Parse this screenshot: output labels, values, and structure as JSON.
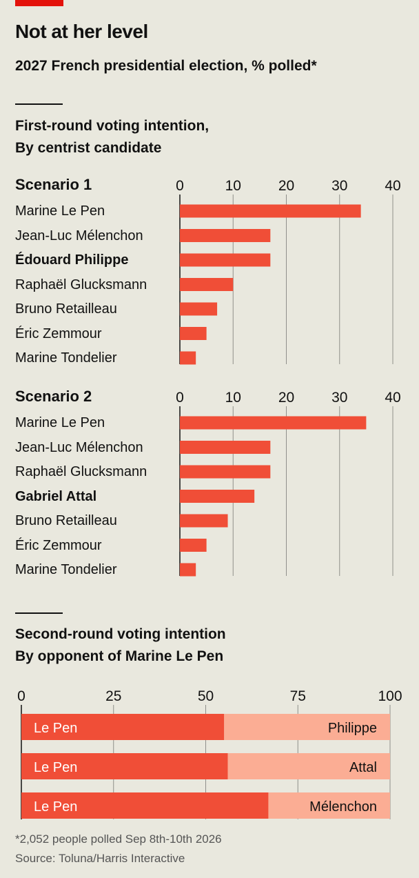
{
  "header": {
    "title": "Not at her level",
    "subtitle": "2027 French presidential election, % polled*"
  },
  "first_round": {
    "title_line1": "First-round voting intention,",
    "title_line2": "By centrist candidate"
  },
  "second_round": {
    "title_line1": "Second-round voting intention",
    "title_line2": "By opponent of Marine Le Pen"
  },
  "footer": {
    "note": "*2,052 people polled Sep 8th-10th 2026",
    "source": "Source: Toluna/Harris Interactive"
  },
  "colors": {
    "bar": "#f04e37",
    "bar_light": "#fbad94",
    "accent": "#e3120b",
    "grid": "#8f8f8a",
    "background": "#e9e8de"
  },
  "chart_data": [
    {
      "type": "bar",
      "orientation": "horizontal",
      "title": "Scenario 1",
      "xlim": [
        0,
        40
      ],
      "xticks": [
        0,
        10,
        20,
        30,
        40
      ],
      "categories": [
        "Marine Le Pen",
        "Jean-Luc Mélenchon",
        "Édouard Philippe",
        "Raphaël Glucksmann",
        "Bruno Retailleau",
        "Éric Zemmour",
        "Marine Tondelier"
      ],
      "highlight": "Édouard Philippe",
      "values": [
        34,
        17,
        17,
        10,
        7,
        5,
        3
      ]
    },
    {
      "type": "bar",
      "orientation": "horizontal",
      "title": "Scenario 2",
      "xlim": [
        0,
        40
      ],
      "xticks": [
        0,
        10,
        20,
        30,
        40
      ],
      "categories": [
        "Marine Le Pen",
        "Jean-Luc Mélenchon",
        "Raphaël Glucksmann",
        "Gabriel Attal",
        "Bruno Retailleau",
        "Éric Zemmour",
        "Marine Tondelier"
      ],
      "highlight": "Gabriel Attal",
      "values": [
        35,
        17,
        17,
        14,
        9,
        5,
        3
      ]
    },
    {
      "type": "bar",
      "orientation": "horizontal",
      "stacked": true,
      "xlim": [
        0,
        100
      ],
      "xticks": [
        0,
        25,
        50,
        75,
        100
      ],
      "rows": [
        {
          "left_label": "Le Pen",
          "right_label": "Philippe",
          "left_value": 55,
          "right_value": 45
        },
        {
          "left_label": "Le Pen",
          "right_label": "Attal",
          "left_value": 56,
          "right_value": 44
        },
        {
          "left_label": "Le Pen",
          "right_label": "Mélenchon",
          "left_value": 67,
          "right_value": 33
        }
      ]
    }
  ]
}
